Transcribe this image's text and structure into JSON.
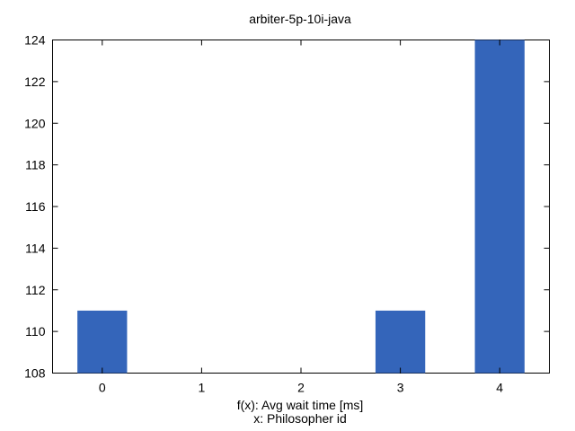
{
  "chart_data": {
    "type": "bar",
    "title": "arbiter-5p-10i-java",
    "xlabel_lines": [
      "f(x): Avg wait time [ms]",
      "x: Philosopher id"
    ],
    "ylabel": "",
    "categories": [
      "0",
      "1",
      "2",
      "3",
      "4"
    ],
    "values": [
      111,
      108,
      108,
      111,
      124
    ],
    "ylim": [
      108,
      124
    ],
    "yticks": [
      108,
      110,
      112,
      114,
      116,
      118,
      120,
      122,
      124
    ],
    "grid": false,
    "legend": "none",
    "bar_color": "#3465ba"
  }
}
